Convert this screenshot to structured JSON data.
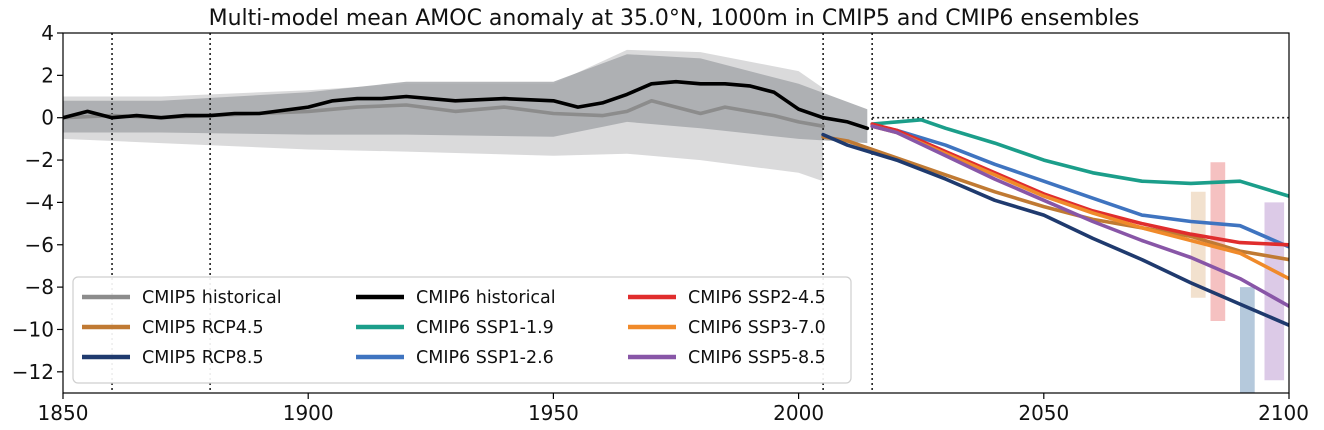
{
  "chart_data": {
    "type": "line",
    "title": "Multi-model mean AMOC anomaly at 35.0°N, 1000m in CMIP5 and CMIP6 ensembles",
    "xlabel": "",
    "ylabel": "",
    "xlim": [
      1850,
      2100
    ],
    "ylim": [
      -13,
      4
    ],
    "x_ticks": [
      1850,
      1900,
      1950,
      2000,
      2050,
      2100
    ],
    "x_tick_labels": [
      "1850",
      "1900",
      "1950",
      "2000",
      "2050",
      "2100"
    ],
    "y_ticks": [
      4,
      2,
      0,
      -2,
      -4,
      -6,
      -8,
      -10,
      -12
    ],
    "y_tick_labels": [
      "4",
      "2",
      "0",
      "−2",
      "−4",
      "−6",
      "−8",
      "−10",
      "−12"
    ],
    "reference_lines": {
      "vertical_years": [
        1860,
        1880,
        2005,
        2015
      ],
      "horizontal_value": 0
    },
    "legend": {
      "placement": "lower-left",
      "columns": 3
    },
    "bands": [
      {
        "name": "CMIP5 historical spread",
        "color": "#d3d3d5",
        "x": [
          1850,
          1870,
          1900,
          1920,
          1950,
          1965,
          1980,
          2000,
          2005
        ],
        "lower": [
          -1.0,
          -1.2,
          -1.5,
          -1.6,
          -1.8,
          -1.7,
          -2.0,
          -2.6,
          -3.0
        ],
        "upper": [
          1.0,
          1.0,
          1.3,
          1.6,
          1.6,
          3.2,
          3.1,
          2.2,
          1.4
        ]
      },
      {
        "name": "CMIP6 historical spread",
        "color": "#a6a8ab",
        "x": [
          1850,
          1870,
          1900,
          1920,
          1950,
          1965,
          1980,
          2000,
          2014
        ],
        "lower": [
          -0.7,
          -0.7,
          -0.8,
          -0.8,
          -0.9,
          -0.2,
          -0.5,
          -1.0,
          -1.2
        ],
        "upper": [
          0.8,
          0.8,
          1.2,
          1.7,
          1.7,
          3.0,
          2.8,
          1.6,
          0.4
        ]
      },
      {
        "name": "CMIP6 SSP3-7.0 range 2080",
        "color": "#f0dcc6",
        "x": [
          2080,
          2083
        ],
        "lower": [
          -8.5,
          -8.5
        ],
        "upper": [
          -3.5,
          -3.5
        ]
      },
      {
        "name": "CMIP6 SSP2-4.5 range 2085",
        "color": "#f3b6b6",
        "x": [
          2084,
          2087
        ],
        "lower": [
          -9.6,
          -9.6
        ],
        "upper": [
          -2.1,
          -2.1
        ]
      },
      {
        "name": "CMIP6 SSP1-2.6 range 2090",
        "color": "#a8bfd6",
        "x": [
          2090,
          2093
        ],
        "lower": [
          -13.0,
          -13.0
        ],
        "upper": [
          -8.0,
          -8.0
        ]
      },
      {
        "name": "CMIP6 SSP5-8.5 range 2095",
        "color": "#d6c1e3",
        "x": [
          2095,
          2099
        ],
        "lower": [
          -12.4,
          -12.4
        ],
        "upper": [
          -4.0,
          -4.0
        ]
      }
    ],
    "series": [
      {
        "name": "CMIP5 historical",
        "color": "#8c8c8c",
        "x": [
          1850,
          1860,
          1870,
          1880,
          1890,
          1900,
          1910,
          1920,
          1930,
          1940,
          1950,
          1960,
          1965,
          1970,
          1975,
          1980,
          1985,
          1990,
          1995,
          2000,
          2005
        ],
        "y": [
          0.0,
          0.1,
          0.0,
          0.1,
          0.2,
          0.3,
          0.5,
          0.6,
          0.3,
          0.5,
          0.2,
          0.1,
          0.3,
          0.8,
          0.5,
          0.2,
          0.5,
          0.3,
          0.1,
          -0.2,
          -0.4
        ]
      },
      {
        "name": "CMIP6 historical",
        "color": "#000000",
        "x": [
          1850,
          1855,
          1860,
          1865,
          1870,
          1875,
          1880,
          1885,
          1890,
          1900,
          1905,
          1910,
          1915,
          1920,
          1930,
          1940,
          1950,
          1955,
          1960,
          1965,
          1970,
          1975,
          1980,
          1985,
          1990,
          1995,
          2000,
          2005,
          2010,
          2014
        ],
        "y": [
          0.0,
          0.3,
          0.0,
          0.1,
          0.0,
          0.1,
          0.1,
          0.2,
          0.2,
          0.5,
          0.8,
          0.9,
          0.9,
          1.0,
          0.8,
          0.9,
          0.8,
          0.5,
          0.7,
          1.1,
          1.6,
          1.7,
          1.6,
          1.6,
          1.5,
          1.2,
          0.4,
          0.0,
          -0.2,
          -0.5
        ]
      },
      {
        "name": "CMIP5 RCP4.5",
        "color": "#c07a33",
        "x": [
          2005,
          2010,
          2020,
          2030,
          2040,
          2050,
          2060,
          2070,
          2080,
          2090,
          2100
        ],
        "y": [
          -0.9,
          -1.1,
          -1.9,
          -2.7,
          -3.5,
          -4.2,
          -4.8,
          -5.2,
          -5.6,
          -6.3,
          -6.7
        ]
      },
      {
        "name": "CMIP5 RCP8.5",
        "color": "#1f3a6e",
        "x": [
          2005,
          2010,
          2020,
          2030,
          2040,
          2050,
          2060,
          2070,
          2080,
          2090,
          2100
        ],
        "y": [
          -0.8,
          -1.3,
          -2.0,
          -2.9,
          -3.9,
          -4.6,
          -5.7,
          -6.7,
          -7.8,
          -8.8,
          -9.8
        ]
      },
      {
        "name": "CMIP6 SSP1-1.9",
        "color": "#1b9e8a",
        "x": [
          2015,
          2020,
          2025,
          2030,
          2040,
          2050,
          2060,
          2070,
          2080,
          2090,
          2100
        ],
        "y": [
          -0.3,
          -0.2,
          -0.1,
          -0.5,
          -1.2,
          -2.0,
          -2.6,
          -3.0,
          -3.1,
          -3.0,
          -3.7
        ]
      },
      {
        "name": "CMIP6 SSP1-2.6",
        "color": "#3f74c0",
        "x": [
          2015,
          2020,
          2030,
          2040,
          2050,
          2060,
          2070,
          2080,
          2090,
          2100
        ],
        "y": [
          -0.4,
          -0.6,
          -1.3,
          -2.2,
          -3.0,
          -3.8,
          -4.6,
          -4.9,
          -5.1,
          -6.1
        ]
      },
      {
        "name": "CMIP6 SSP2-4.5",
        "color": "#e02d2d",
        "x": [
          2015,
          2020,
          2030,
          2040,
          2050,
          2060,
          2070,
          2080,
          2090,
          2100
        ],
        "y": [
          -0.3,
          -0.6,
          -1.6,
          -2.6,
          -3.6,
          -4.4,
          -5.0,
          -5.5,
          -5.9,
          -6.0
        ]
      },
      {
        "name": "CMIP6 SSP3-7.0",
        "color": "#f08a2a",
        "x": [
          2015,
          2020,
          2030,
          2040,
          2050,
          2060,
          2070,
          2080,
          2090,
          2100
        ],
        "y": [
          -0.4,
          -0.7,
          -1.7,
          -2.7,
          -3.7,
          -4.5,
          -5.2,
          -5.8,
          -6.4,
          -7.6
        ]
      },
      {
        "name": "CMIP6 SSP5-8.5",
        "color": "#8856a7",
        "x": [
          2015,
          2020,
          2030,
          2040,
          2050,
          2060,
          2070,
          2080,
          2090,
          2100
        ],
        "y": [
          -0.4,
          -0.7,
          -1.8,
          -2.9,
          -3.9,
          -4.9,
          -5.8,
          -6.6,
          -7.6,
          -8.9
        ]
      }
    ],
    "legend_entries": [
      {
        "label": "CMIP5 historical",
        "color": "#8c8c8c"
      },
      {
        "label": "CMIP5 RCP4.5",
        "color": "#c07a33"
      },
      {
        "label": "CMIP5 RCP8.5",
        "color": "#1f3a6e"
      },
      {
        "label": "CMIP6 historical",
        "color": "#000000"
      },
      {
        "label": "CMIP6 SSP1-1.9",
        "color": "#1b9e8a"
      },
      {
        "label": "CMIP6 SSP1-2.6",
        "color": "#3f74c0"
      },
      {
        "label": "CMIP6 SSP2-4.5",
        "color": "#e02d2d"
      },
      {
        "label": "CMIP6 SSP3-7.0",
        "color": "#f08a2a"
      },
      {
        "label": "CMIP6 SSP5-8.5",
        "color": "#8856a7"
      }
    ]
  }
}
